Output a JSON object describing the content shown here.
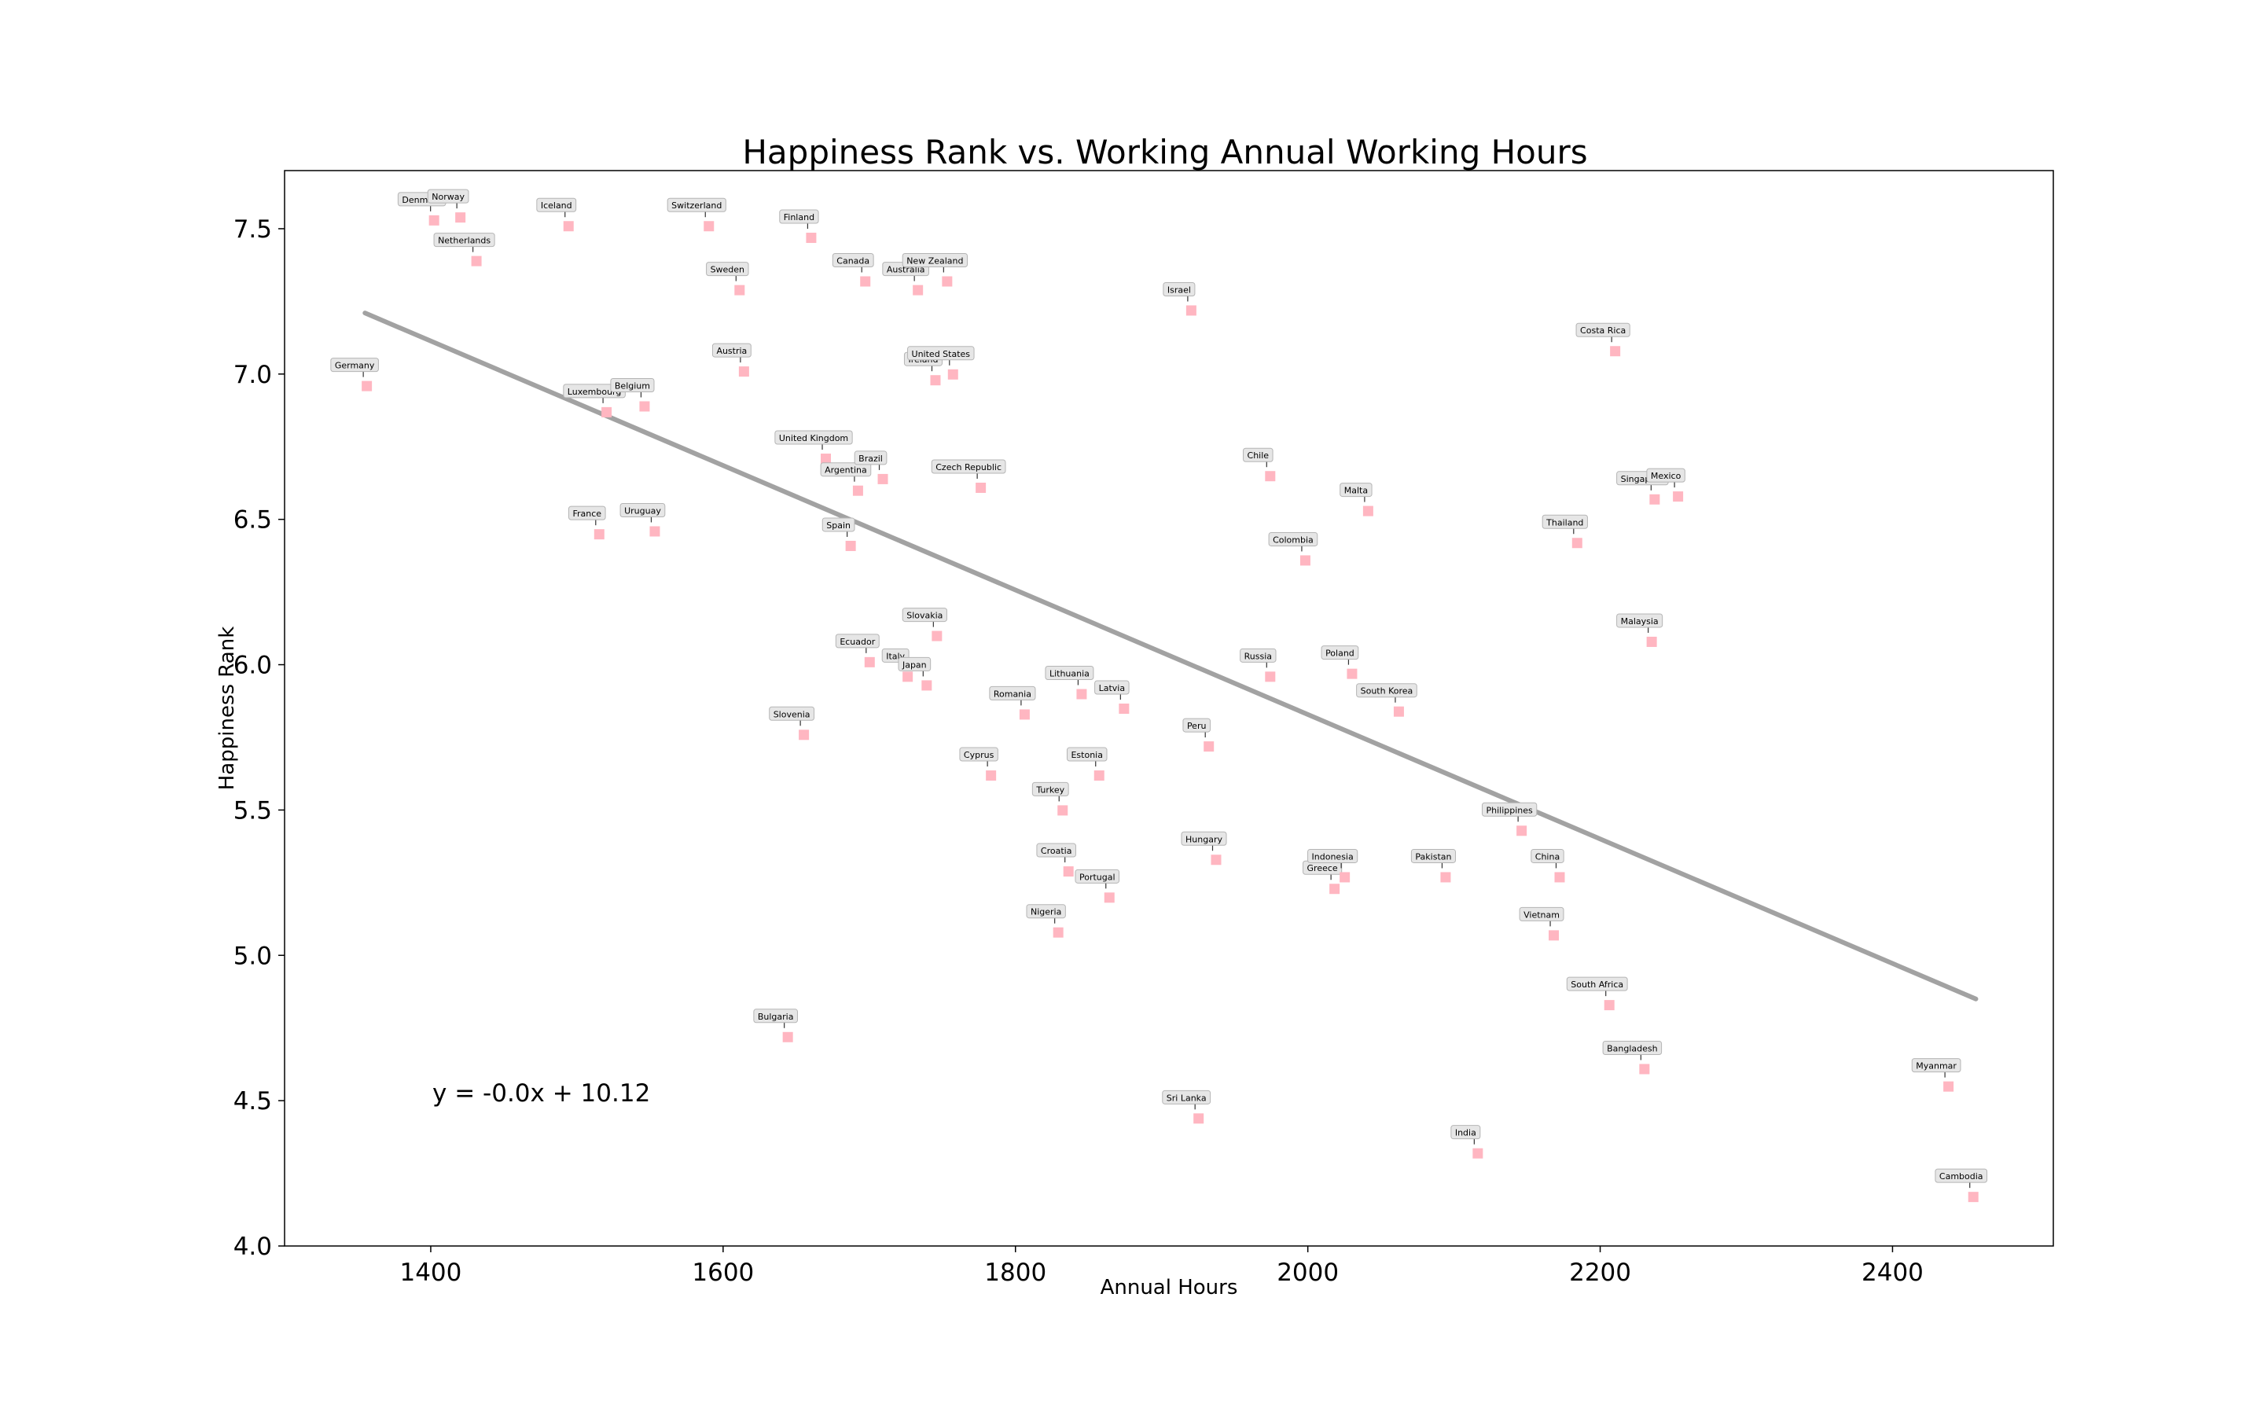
{
  "chart_data": {
    "type": "scatter",
    "title": "Happiness Rank vs. Working Annual Working Hours",
    "xlabel": "Annual Hours",
    "ylabel": "Happiness Rank",
    "xlim": [
      1300,
      2510
    ],
    "ylim": [
      4.0,
      7.7
    ],
    "xticks": [
      1400,
      1600,
      1800,
      2000,
      2200,
      2400
    ],
    "yticks": [
      4.0,
      4.5,
      5.0,
      5.5,
      6.0,
      6.5,
      7.0,
      7.5
    ],
    "grid": false,
    "marker_color": "#ffb6c1",
    "trend_color": "#999999",
    "regression": {
      "label": "y = -0.0x + 10.12",
      "x": [
        1355,
        2457
      ],
      "y": [
        7.21,
        4.85
      ]
    },
    "points": [
      {
        "label": "Germany",
        "x": 1356,
        "y": 6.96
      },
      {
        "label": "Denmark",
        "x": 1402,
        "y": 7.53
      },
      {
        "label": "Norway",
        "x": 1420,
        "y": 7.54
      },
      {
        "label": "Netherlands",
        "x": 1431,
        "y": 7.39
      },
      {
        "label": "Iceland",
        "x": 1494,
        "y": 7.51
      },
      {
        "label": "Luxembourg",
        "x": 1520,
        "y": 6.87
      },
      {
        "label": "Belgium",
        "x": 1546,
        "y": 6.89
      },
      {
        "label": "France",
        "x": 1515,
        "y": 6.45
      },
      {
        "label": "Uruguay",
        "x": 1553,
        "y": 6.46
      },
      {
        "label": "Switzerland",
        "x": 1590,
        "y": 7.51
      },
      {
        "label": "Sweden",
        "x": 1611,
        "y": 7.29
      },
      {
        "label": "Austria",
        "x": 1614,
        "y": 7.01
      },
      {
        "label": "Finland",
        "x": 1660,
        "y": 7.47
      },
      {
        "label": "Slovenia",
        "x": 1655,
        "y": 5.76
      },
      {
        "label": "Bulgaria",
        "x": 1644,
        "y": 4.72
      },
      {
        "label": "United Kingdom",
        "x": 1670,
        "y": 6.71
      },
      {
        "label": "Canada",
        "x": 1697,
        "y": 7.32
      },
      {
        "label": "Argentina",
        "x": 1692,
        "y": 6.6
      },
      {
        "label": "Brazil",
        "x": 1709,
        "y": 6.64
      },
      {
        "label": "Spain",
        "x": 1687,
        "y": 6.41
      },
      {
        "label": "Ecuador",
        "x": 1700,
        "y": 6.01
      },
      {
        "label": "Italy",
        "x": 1726,
        "y": 5.96
      },
      {
        "label": "Japan",
        "x": 1739,
        "y": 5.93
      },
      {
        "label": "Slovakia",
        "x": 1746,
        "y": 6.1
      },
      {
        "label": "Australia",
        "x": 1733,
        "y": 7.29
      },
      {
        "label": "New Zealand",
        "x": 1753,
        "y": 7.32
      },
      {
        "label": "Ireland",
        "x": 1745,
        "y": 6.98
      },
      {
        "label": "United States",
        "x": 1757,
        "y": 7.0
      },
      {
        "label": "Czech Republic",
        "x": 1776,
        "y": 6.61
      },
      {
        "label": "Cyprus",
        "x": 1783,
        "y": 5.62
      },
      {
        "label": "Romania",
        "x": 1806,
        "y": 5.83
      },
      {
        "label": "Nigeria",
        "x": 1829,
        "y": 5.08
      },
      {
        "label": "Turkey",
        "x": 1832,
        "y": 5.5
      },
      {
        "label": "Croatia",
        "x": 1836,
        "y": 5.29
      },
      {
        "label": "Lithuania",
        "x": 1845,
        "y": 5.9
      },
      {
        "label": "Estonia",
        "x": 1857,
        "y": 5.62
      },
      {
        "label": "Portugal",
        "x": 1864,
        "y": 5.2
      },
      {
        "label": "Latvia",
        "x": 1874,
        "y": 5.85
      },
      {
        "label": "Israel",
        "x": 1920,
        "y": 7.22
      },
      {
        "label": "Peru",
        "x": 1932,
        "y": 5.72
      },
      {
        "label": "Sri Lanka",
        "x": 1925,
        "y": 4.44
      },
      {
        "label": "Hungary",
        "x": 1937,
        "y": 5.33
      },
      {
        "label": "Chile",
        "x": 1974,
        "y": 6.65
      },
      {
        "label": "Russia",
        "x": 1974,
        "y": 5.96
      },
      {
        "label": "Colombia",
        "x": 1998,
        "y": 6.36
      },
      {
        "label": "Greece",
        "x": 2018,
        "y": 5.23
      },
      {
        "label": "Indonesia",
        "x": 2025,
        "y": 5.27
      },
      {
        "label": "Poland",
        "x": 2030,
        "y": 5.97
      },
      {
        "label": "Malta",
        "x": 2041,
        "y": 6.53
      },
      {
        "label": "South Korea",
        "x": 2062,
        "y": 5.84
      },
      {
        "label": "Pakistan",
        "x": 2094,
        "y": 5.27
      },
      {
        "label": "India",
        "x": 2116,
        "y": 4.32
      },
      {
        "label": "Philippines",
        "x": 2146,
        "y": 5.43
      },
      {
        "label": "Vietnam",
        "x": 2168,
        "y": 5.07
      },
      {
        "label": "China",
        "x": 2172,
        "y": 5.27
      },
      {
        "label": "Thailand",
        "x": 2184,
        "y": 6.42
      },
      {
        "label": "South Africa",
        "x": 2206,
        "y": 4.83
      },
      {
        "label": "Costa Rica",
        "x": 2210,
        "y": 7.08
      },
      {
        "label": "Bangladesh",
        "x": 2230,
        "y": 4.61
      },
      {
        "label": "Malaysia",
        "x": 2235,
        "y": 6.08
      },
      {
        "label": "Singapore",
        "x": 2237,
        "y": 6.57
      },
      {
        "label": "Mexico",
        "x": 2253,
        "y": 6.58
      },
      {
        "label": "Myanmar",
        "x": 2438,
        "y": 4.55
      },
      {
        "label": "Cambodia",
        "x": 2455,
        "y": 4.17
      }
    ]
  }
}
